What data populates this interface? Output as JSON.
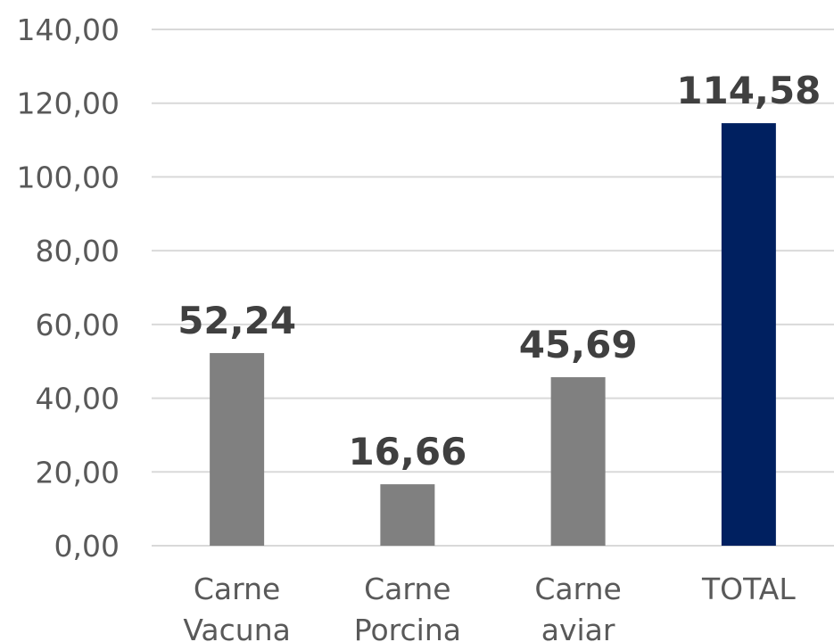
{
  "chart_data": {
    "type": "bar",
    "categories": [
      [
        "Carne",
        "Vacuna"
      ],
      [
        "Carne",
        "Porcina"
      ],
      [
        "Carne",
        "aviar"
      ],
      [
        "TOTAL"
      ]
    ],
    "values": [
      52.24,
      16.66,
      45.69,
      114.58
    ],
    "data_labels": [
      "52,24",
      "16,66",
      "45,69",
      "114,58"
    ],
    "y_ticks": [
      "0,00",
      "20,00",
      "40,00",
      "60,00",
      "80,00",
      "100,00",
      "120,00",
      "140,00"
    ],
    "ylim": [
      0,
      140
    ],
    "grid": true,
    "colors": {
      "default_bar": "#808080",
      "total_bar": "#002060",
      "grid": "#d9d9d9",
      "tick_text": "#595959",
      "label_text": "#404040"
    }
  }
}
